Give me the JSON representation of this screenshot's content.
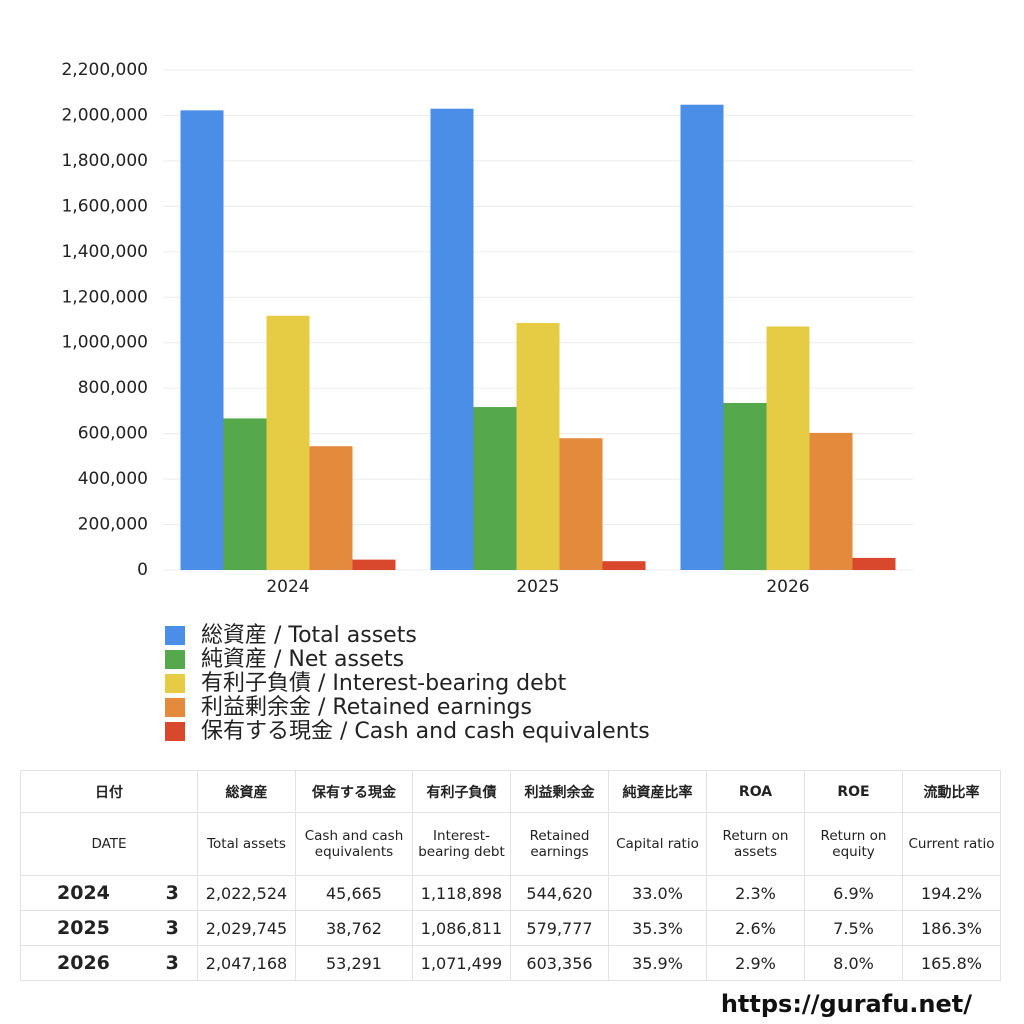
{
  "chart_data": {
    "type": "bar",
    "categories": [
      "2024",
      "2025",
      "2026"
    ],
    "series": [
      {
        "name": "総資産 / Total assets",
        "color": "#4a8ee8",
        "values": [
          2022524,
          2029745,
          2047168
        ]
      },
      {
        "name": "純資産 / Net assets",
        "color": "#55a84c",
        "values": [
          667000,
          717000,
          735000
        ]
      },
      {
        "name": "有利子負債 / Interest-bearing debt",
        "color": "#e6cc45",
        "values": [
          1118898,
          1086811,
          1071499
        ]
      },
      {
        "name": "利益剰余金 / Retained earnings",
        "color": "#e38a3c",
        "values": [
          544620,
          579777,
          603356
        ]
      },
      {
        "name": "保有する現金 /  Cash and cash equivalents",
        "color": "#d9472c",
        "values": [
          45665,
          38762,
          53291
        ]
      }
    ],
    "ylim": [
      0,
      2200000
    ],
    "yticks": [
      0,
      {
        "value": 200000,
        "label": "200,000"
      },
      {
        "value": 400000,
        "label": "400,000"
      },
      {
        "value": 600000,
        "label": "600,000"
      },
      {
        "value": 800000,
        "label": "800,000"
      },
      {
        "value": 1000000,
        "label": "1,000,000"
      },
      {
        "value": 1200000,
        "label": "1,200,000"
      },
      {
        "value": 1400000,
        "label": "1,400,000"
      },
      {
        "value": 1600000,
        "label": "1,600,000"
      },
      {
        "value": 1800000,
        "label": "1,800,000"
      },
      {
        "value": 2000000,
        "label": "2,000,000"
      },
      {
        "value": 2200000,
        "label": "2,200,000"
      }
    ],
    "grid": true,
    "legend": "bottom"
  },
  "table": {
    "header": [
      "日付",
      "総資産",
      "保有する現金",
      "有利子負債",
      "利益剰余金",
      "純資産比率",
      "ROA",
      "ROE",
      "流動比率"
    ],
    "subheader": [
      "DATE",
      "Total assets",
      "Cash and cash equivalents",
      "Interest-bearing debt",
      "Retained earnings",
      "Capital ratio",
      "Return on assets",
      "Return on equity",
      "Current ratio"
    ],
    "rows": [
      [
        "2024",
        "3",
        "2,022,524",
        "45,665",
        "1,118,898",
        "544,620",
        "33.0%",
        "2.3%",
        "6.9%",
        "194.2%"
      ],
      [
        "2025",
        "3",
        "2,029,745",
        "38,762",
        "1,086,811",
        "579,777",
        "35.3%",
        "2.6%",
        "7.5%",
        "186.3%"
      ],
      [
        "2026",
        "3",
        "2,047,168",
        "53,291",
        "1,071,499",
        "603,356",
        "35.9%",
        "2.9%",
        "8.0%",
        "165.8%"
      ]
    ]
  },
  "footer": "https://gurafu.net/"
}
